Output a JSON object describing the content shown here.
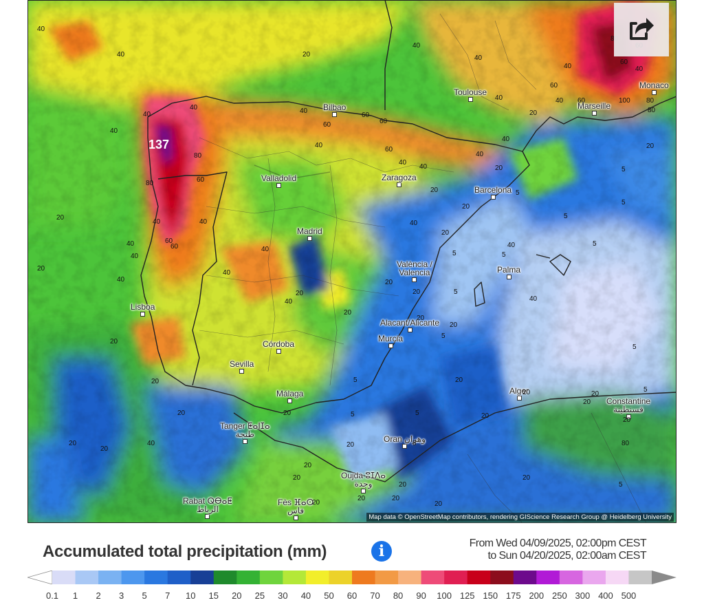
{
  "map": {
    "share_icon": "share-icon",
    "attribution": "Map data © OpenStreetMap contributors, rendering GIScience Research Group @ Heidelberg University",
    "cities": [
      {
        "id": "toulouse",
        "name": "Toulouse",
        "name2": ""
      },
      {
        "id": "monaco",
        "name": "Monaco",
        "name2": ""
      },
      {
        "id": "marseille",
        "name": "Marseille",
        "name2": ""
      },
      {
        "id": "bilbao",
        "name": "Bilbao",
        "name2": ""
      },
      {
        "id": "valladolid",
        "name": "Valladolid",
        "name2": ""
      },
      {
        "id": "zaragoza",
        "name": "Zaragoza",
        "name2": ""
      },
      {
        "id": "barcelona",
        "name": "Barcelona",
        "name2": ""
      },
      {
        "id": "madrid",
        "name": "Madrid",
        "name2": ""
      },
      {
        "id": "valencia",
        "name": "València /",
        "name2": "Valencia"
      },
      {
        "id": "palma",
        "name": "Palma",
        "name2": ""
      },
      {
        "id": "lisboa",
        "name": "Lisboa",
        "name2": ""
      },
      {
        "id": "alicante",
        "name": "Alacant/Alicante",
        "name2": ""
      },
      {
        "id": "murcia",
        "name": "Murcia",
        "name2": ""
      },
      {
        "id": "cordoba",
        "name": "Córdoba",
        "name2": ""
      },
      {
        "id": "sevilla",
        "name": "Sevilla",
        "name2": ""
      },
      {
        "id": "malaga",
        "name": "Málaga",
        "name2": ""
      },
      {
        "id": "alger",
        "name": "Alger",
        "name2": ""
      },
      {
        "id": "constantine",
        "name": "Constantine",
        "name2": "قسنطينة"
      },
      {
        "id": "tanger",
        "name": "Tanger ⵟⴰⵏⵊⴰ",
        "name2": "طنجة"
      },
      {
        "id": "oran",
        "name": "Oran وهران",
        "name2": ""
      },
      {
        "id": "oujda",
        "name": "Oujda ⵓⵊⴷⴰ",
        "name2": "وجدة"
      },
      {
        "id": "rabat",
        "name": "Rabat ⵕⴱⴰⵟ",
        "name2": "الرباط"
      },
      {
        "id": "fes",
        "name": "Fès ⴼⴰⵙ",
        "name2": "فاس"
      }
    ],
    "values": [
      "40",
      "40",
      "20",
      "40",
      "40",
      "40",
      "60",
      "80",
      "100",
      "40",
      "40",
      "40",
      "40",
      "60",
      "60",
      "60",
      "60",
      "40",
      "40",
      "40",
      "40",
      "60",
      "80",
      "80",
      "40",
      "60",
      "40",
      "40",
      "40",
      "40",
      "20",
      "20",
      "40",
      "20",
      "40",
      "60",
      "40",
      "20",
      "20",
      "20",
      "40",
      "20",
      "40",
      "20",
      "20",
      "20",
      "20",
      "20",
      "20",
      "40",
      "20",
      "40",
      "40",
      "20",
      "20",
      "20",
      "20",
      "20",
      "20",
      "20",
      "20",
      "40",
      "20",
      "20",
      "20",
      "20",
      "20",
      "20",
      "5",
      "5",
      "5",
      "5",
      "5",
      "5",
      "5",
      "5",
      "5",
      "5",
      "5",
      "5",
      "5",
      "5",
      "5",
      "20",
      "20",
      "20",
      "20",
      "20",
      "5",
      "80",
      "60",
      "80",
      "60",
      "40",
      "60",
      "80",
      "20",
      "40",
      "20"
    ],
    "peak": "137"
  },
  "title": "Accumulated total precipitation (mm)",
  "info_icon": "info-icon",
  "period": {
    "line1": "From Wed 04/09/2025, 02:00pm CEST",
    "line2": "to Sun 04/20/2025, 02:00am CEST"
  },
  "legend": {
    "labels": [
      "0.1",
      "1",
      "2",
      "3",
      "5",
      "7",
      "10",
      "15",
      "20",
      "25",
      "30",
      "40",
      "50",
      "60",
      "70",
      "80",
      "90",
      "100",
      "125",
      "150",
      "175",
      "200",
      "250",
      "300",
      "400",
      "500"
    ],
    "colors": [
      "#d9dcf7",
      "#a9c8f5",
      "#7ab2f2",
      "#4d97ee",
      "#2a78e0",
      "#1f5fc8",
      "#173f96",
      "#1f8a2c",
      "#34b234",
      "#6fd43d",
      "#b4e838",
      "#f2ee2b",
      "#ecd22a",
      "#ee7a1f",
      "#f29a45",
      "#f7b27d",
      "#ee4b78",
      "#e01f52",
      "#c8001a",
      "#8c0d1c",
      "#6d0a8c",
      "#b11ad6",
      "#d766e0",
      "#eaa7ee",
      "#f6d8f5",
      "#c6c6c6"
    ],
    "end_colors": [
      "#ffffff",
      "#8a8a8a"
    ]
  }
}
